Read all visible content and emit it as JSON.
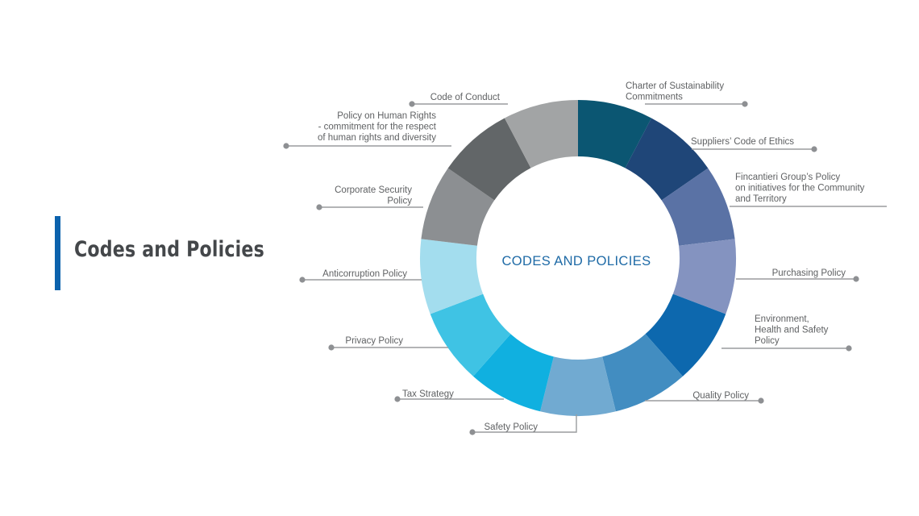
{
  "title": "Codes and Policies",
  "center_label": "CODES AND POLICIES",
  "segments": [
    {
      "label": [
        "Charter of Sustainability",
        "Commitments"
      ],
      "color": "#0b5672"
    },
    {
      "label": [
        "Suppliers’ Code of Ethics"
      ],
      "color": "#1f4678"
    },
    {
      "label": [
        "Fincantieri Group’s Policy",
        "on initiatives for the Community",
        "and Territory"
      ],
      "color": "#5a72a5"
    },
    {
      "label": [
        "Purchasing Policy"
      ],
      "color": "#8493c0"
    },
    {
      "label": [
        "Environment,",
        "Health and Safety",
        "Policy"
      ],
      "color": "#0d68ae"
    },
    {
      "label": [
        "Quality Policy"
      ],
      "color": "#428dc1"
    },
    {
      "label": [
        "Safety Policy"
      ],
      "color": "#71aad1"
    },
    {
      "label": [
        "Tax Strategy"
      ],
      "color": "#10b0e0"
    },
    {
      "label": [
        "Privacy Policy"
      ],
      "color": "#3fc3e4"
    },
    {
      "label": [
        "Anticorruption Policy"
      ],
      "color": "#a3ddee"
    },
    {
      "label": [
        "Corporate Security",
        "Policy"
      ],
      "color": "#8c8f92"
    },
    {
      "label": [
        "Policy on Human Rights",
        "- commitment for the respect",
        "of human rights and diversity"
      ],
      "color": "#626668"
    },
    {
      "label": [
        "Code of Conduct"
      ],
      "color": "#a2a4a5"
    }
  ],
  "colors": {
    "accent": "#0b62ad",
    "title_text": "#44474a",
    "center_text": "#1e6aa6",
    "label_text": "#5f6163"
  }
}
